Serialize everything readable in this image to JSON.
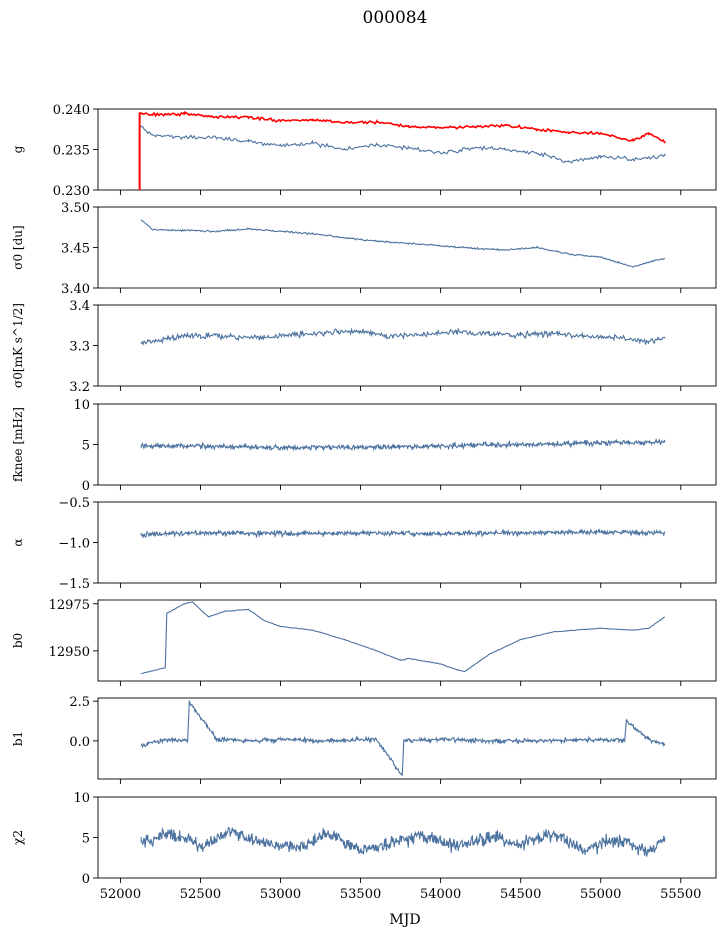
{
  "title": "000084",
  "xlabel": "MJD",
  "colors": {
    "blue": "#4c72a0",
    "red": "#ff0000"
  },
  "x_ticks": [
    52000,
    52500,
    53000,
    53500,
    54000,
    54500,
    55000,
    55500
  ],
  "x_tick_labels": [
    "52000",
    "52500",
    "53000",
    "53500",
    "54000",
    "54500",
    "55000",
    "55500"
  ],
  "chart_data": [
    {
      "type": "line",
      "ylabel": "g",
      "xlim": [
        51860,
        55720
      ],
      "ylim": [
        0.23,
        0.24
      ],
      "y_ticks": [
        0.23,
        0.235,
        0.24
      ],
      "y_tick_labels": [
        "0.230",
        "0.235",
        "0.240"
      ],
      "series": [
        {
          "color": "#ff0000",
          "x": [
            52120,
            52200,
            52400,
            52600,
            52800,
            53000,
            53200,
            53400,
            53600,
            53800,
            54000,
            54200,
            54400,
            54600,
            54800,
            55000,
            55200,
            55300,
            55400
          ],
          "y": [
            0.2395,
            0.2393,
            0.2394,
            0.239,
            0.239,
            0.2385,
            0.2387,
            0.2383,
            0.2384,
            0.2378,
            0.2377,
            0.2378,
            0.238,
            0.2375,
            0.2371,
            0.237,
            0.2361,
            0.237,
            0.236
          ]
        },
        {
          "color": "#4c72a0",
          "x": [
            52130,
            52200,
            52400,
            52600,
            52800,
            53000,
            53200,
            53400,
            53600,
            53800,
            54000,
            54200,
            54400,
            54600,
            54800,
            55000,
            55200,
            55400
          ],
          "y": [
            0.2378,
            0.2368,
            0.2365,
            0.2364,
            0.236,
            0.2355,
            0.2358,
            0.235,
            0.2356,
            0.2352,
            0.2345,
            0.2352,
            0.235,
            0.2345,
            0.2335,
            0.2342,
            0.2338,
            0.2342
          ]
        }
      ]
    },
    {
      "type": "line",
      "ylabel": "σ0 [du]",
      "xlim": [
        51860,
        55720
      ],
      "ylim": [
        3.4,
        3.5
      ],
      "y_ticks": [
        3.4,
        3.45,
        3.5
      ],
      "y_tick_labels": [
        "3.40",
        "3.45",
        "3.50"
      ],
      "series": [
        {
          "color": "#4c72a0",
          "x": [
            52130,
            52200,
            52400,
            52600,
            52800,
            53000,
            53200,
            53400,
            53600,
            53800,
            54000,
            54200,
            54400,
            54600,
            54800,
            55000,
            55200,
            55300,
            55400
          ],
          "y": [
            3.484,
            3.472,
            3.471,
            3.47,
            3.473,
            3.47,
            3.467,
            3.462,
            3.458,
            3.455,
            3.452,
            3.449,
            3.447,
            3.45,
            3.442,
            3.438,
            3.426,
            3.432,
            3.436
          ]
        }
      ]
    },
    {
      "type": "line",
      "ylabel": "σ0[mK s^1/2]",
      "xlim": [
        51860,
        55720
      ],
      "ylim": [
        3.2,
        3.4
      ],
      "y_ticks": [
        3.2,
        3.3,
        3.4
      ],
      "y_tick_labels": [
        "3.2",
        "3.3",
        "3.4"
      ],
      "series": [
        {
          "color": "#4c72a0",
          "x": [
            52130,
            52300,
            52500,
            52700,
            52900,
            53100,
            53300,
            53500,
            53700,
            53900,
            54100,
            54300,
            54500,
            54700,
            54900,
            55100,
            55300,
            55400
          ],
          "y": [
            3.305,
            3.318,
            3.325,
            3.322,
            3.32,
            3.328,
            3.332,
            3.335,
            3.322,
            3.327,
            3.335,
            3.33,
            3.326,
            3.33,
            3.322,
            3.32,
            3.31,
            3.318
          ]
        }
      ]
    },
    {
      "type": "line",
      "ylabel": "fknee [mHz]",
      "xlim": [
        51860,
        55720
      ],
      "ylim": [
        0,
        10
      ],
      "y_ticks": [
        0,
        5,
        10
      ],
      "y_tick_labels": [
        "0",
        "5",
        "10"
      ],
      "series": [
        {
          "color": "#4c72a0",
          "x": [
            52130,
            52500,
            53000,
            53500,
            54000,
            54500,
            55000,
            55400
          ],
          "y": [
            4.8,
            4.8,
            4.6,
            4.7,
            4.8,
            5.0,
            5.2,
            5.3
          ]
        }
      ]
    },
    {
      "type": "line",
      "ylabel": "α",
      "xlim": [
        51860,
        55720
      ],
      "ylim": [
        -1.5,
        -0.5
      ],
      "y_ticks": [
        -1.5,
        -1.0,
        -0.5
      ],
      "y_tick_labels": [
        "−1.5",
        "−1.0",
        "−0.5"
      ],
      "series": [
        {
          "color": "#4c72a0",
          "x": [
            52130,
            52500,
            53000,
            53500,
            54000,
            54500,
            55000,
            55400
          ],
          "y": [
            -0.9,
            -0.88,
            -0.89,
            -0.88,
            -0.89,
            -0.88,
            -0.87,
            -0.88
          ]
        }
      ]
    },
    {
      "type": "line",
      "ylabel": "b0",
      "xlim": [
        51860,
        55720
      ],
      "ylim": [
        12934,
        12977
      ],
      "y_ticks": [
        12950,
        12975
      ],
      "y_tick_labels": [
        "12950",
        "12975"
      ],
      "series": [
        {
          "color": "#4c72a0",
          "x": [
            52130,
            52280,
            52290,
            52400,
            52450,
            52550,
            52650,
            52800,
            52900,
            53000,
            53200,
            53400,
            53600,
            53750,
            53800,
            54000,
            54100,
            54150,
            54300,
            54500,
            54700,
            55000,
            55200,
            55300,
            55400
          ],
          "y": [
            12938,
            12941,
            12970,
            12975,
            12976,
            12968,
            12971,
            12972,
            12966,
            12963,
            12961,
            12956,
            12950,
            12945,
            12946,
            12943,
            12940,
            12939,
            12948,
            12956,
            12960,
            12962,
            12961,
            12962,
            12968
          ]
        }
      ]
    },
    {
      "type": "line",
      "ylabel": "b1",
      "xlim": [
        51860,
        55720
      ],
      "ylim": [
        -2.4,
        2.7
      ],
      "y_ticks": [
        0.0,
        2.5
      ],
      "y_tick_labels": [
        "0.0",
        "2.5"
      ],
      "series": [
        {
          "color": "#4c72a0",
          "x": [
            52130,
            52300,
            52420,
            52430,
            52600,
            52800,
            53000,
            53300,
            53600,
            53760,
            53770,
            54000,
            54300,
            54600,
            54900,
            55150,
            55160,
            55300,
            55400
          ],
          "y": [
            -0.3,
            0.1,
            0.0,
            2.5,
            0.1,
            0.0,
            0.1,
            0.0,
            0.1,
            -2.2,
            0.0,
            0.1,
            0.0,
            0.0,
            0.1,
            0.0,
            1.3,
            0.1,
            -0.2
          ]
        }
      ]
    },
    {
      "type": "line",
      "ylabel": "χ2",
      "xlim": [
        51860,
        55720
      ],
      "ylim": [
        0,
        10
      ],
      "y_ticks": [
        0,
        5,
        10
      ],
      "y_tick_labels": [
        "0",
        "5",
        "10"
      ],
      "series": [
        {
          "color": "#4c72a0",
          "x": [
            52130,
            52300,
            52500,
            52700,
            52900,
            53100,
            53300,
            53500,
            53700,
            53900,
            54100,
            54300,
            54500,
            54700,
            54900,
            55100,
            55300,
            55400
          ],
          "y": [
            4.5,
            5.5,
            4.0,
            5.8,
            4.2,
            3.8,
            5.5,
            3.5,
            4.5,
            5.2,
            3.8,
            5.0,
            4.2,
            5.5,
            3.5,
            4.8,
            3.2,
            5.0
          ]
        }
      ]
    }
  ]
}
